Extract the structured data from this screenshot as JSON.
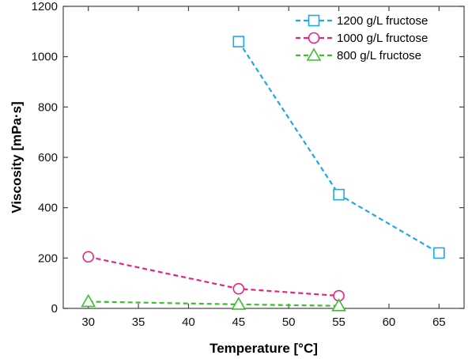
{
  "chart_data": {
    "type": "line",
    "title": "",
    "xlabel": "Temperature   [°C]",
    "ylabel": "Viscosity   [mPa·s]",
    "xlim": [
      27.5,
      67.5
    ],
    "ylim": [
      0,
      1200
    ],
    "xticks": [
      30,
      35,
      40,
      45,
      50,
      55,
      60,
      65
    ],
    "yticks": [
      0,
      200,
      400,
      600,
      800,
      1000,
      1200
    ],
    "grid": false,
    "legend_position": "top-right",
    "series": [
      {
        "name": "1200 g/L fructose",
        "color": "#1ca9e6",
        "marker": "square",
        "line_style": "dashed",
        "x": [
          45,
          55,
          65
        ],
        "y": [
          1060,
          452,
          220
        ]
      },
      {
        "name": "1000 g/L fructose",
        "color": "#e8237f",
        "marker": "circle",
        "line_style": "dashed",
        "x": [
          30,
          45,
          55
        ],
        "y": [
          205,
          78,
          50
        ]
      },
      {
        "name": "800 g/L fructose",
        "color": "#3cbf2f",
        "marker": "triangle",
        "line_style": "dashed",
        "x": [
          30,
          45,
          55
        ],
        "y": [
          27,
          16,
          10
        ]
      }
    ]
  }
}
